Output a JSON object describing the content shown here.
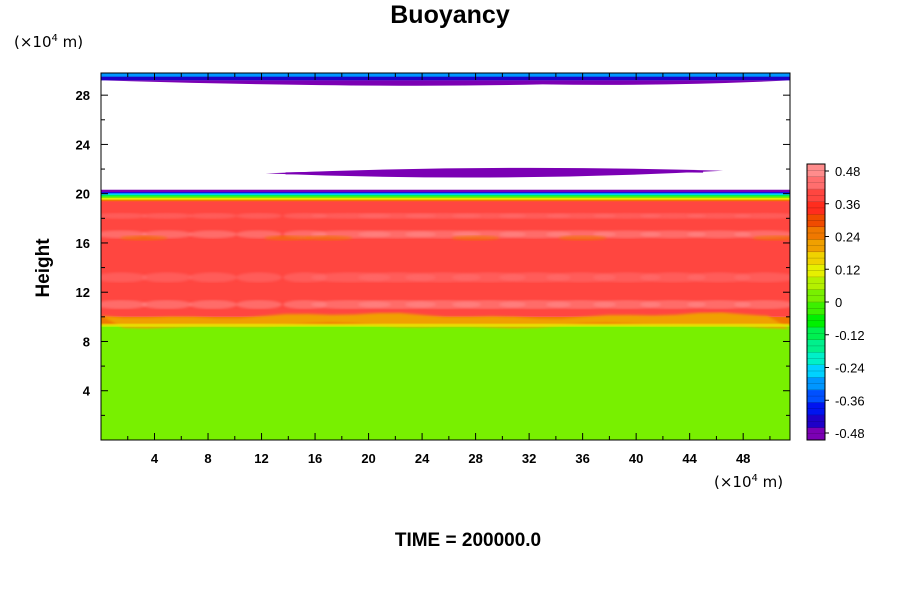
{
  "chart_data": {
    "type": "heatmap",
    "title": "Buoyancy",
    "ylabel": "Height",
    "xlabel": "",
    "x_unit": {
      "prefix": "(×10",
      "exp": "4",
      "suffix": " m)"
    },
    "y_unit": {
      "prefix": "(×10",
      "exp": "4",
      "suffix": " m)"
    },
    "xlim": [
      0,
      51.5
    ],
    "ylim": [
      0,
      29.8
    ],
    "x_ticks": [
      4,
      8,
      12,
      16,
      20,
      24,
      28,
      32,
      36,
      40,
      44,
      48
    ],
    "y_ticks": [
      4,
      8,
      12,
      16,
      20,
      24,
      28
    ],
    "colorbar": {
      "ticks": [
        "0.48",
        "0.36",
        "0.24",
        "0.12",
        "0",
        "-0.12",
        "-0.24",
        "-0.36",
        "-0.48"
      ],
      "range": [
        -0.48,
        0.48
      ],
      "colors": [
        "#7b00b4",
        "#1e00c8",
        "#0014f0",
        "#0050ff",
        "#0096ff",
        "#00d2ff",
        "#00f0c8",
        "#00f08c",
        "#00f050",
        "#00f000",
        "#3cf000",
        "#78f000",
        "#b4f000",
        "#e6f000",
        "#f0d200",
        "#f0a000",
        "#f07800",
        "#f04b00",
        "#ff2d1e",
        "#ff4640",
        "#ff6e6e",
        "#ff8c8c"
      ]
    },
    "layers": [
      {
        "name": "lower",
        "y_range": [
          0,
          9.3
        ],
        "value": 0.0
      },
      {
        "name": "interface",
        "y_range": [
          9.3,
          10.0
        ],
        "value": 0.24
      },
      {
        "name": "middle",
        "y_range": [
          10.0,
          19.3
        ],
        "value": 0.36
      },
      {
        "name": "upper-edge",
        "y_range": [
          19.3,
          20.2
        ],
        "value": -0.2
      },
      {
        "name": "band-top",
        "y_range": [
          29.2,
          29.8
        ],
        "value": -0.42
      },
      {
        "name": "lens",
        "y_range": [
          21.3,
          22.0
        ],
        "x_range": [
          12.3,
          46.5
        ],
        "value": -0.44
      }
    ]
  },
  "time_label": "TIME = 200000.0"
}
